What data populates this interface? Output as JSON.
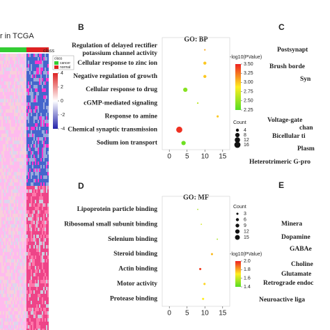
{
  "heatmap": {
    "title": "r in TCGA",
    "legend_title": "class",
    "legend_items": [
      "cancer",
      "normal"
    ],
    "scale_ticks": [
      4,
      2,
      0,
      -2,
      -4
    ]
  },
  "panel_c": {
    "label": "C",
    "items": [
      "Postsynapt",
      "Brush borde",
      "Syn",
      "Voltage-gate",
      "chan",
      "Bicellular ti",
      "Plasm",
      "Heterotrimeric G-pro"
    ]
  },
  "panel_e": {
    "label": "E",
    "items": [
      "Minera",
      "Dopamine",
      "GABAe",
      "Choline",
      "Glutamate",
      "Retrograde endoc",
      "Neuroactive liga"
    ]
  },
  "chart_data": [
    {
      "type": "dot",
      "panel_label": "B",
      "title": "GO: BP",
      "categories": [
        "Regulation of delayed rectifier potassium channel activity",
        "Cellular response to zinc ion",
        "Negative regulation of growth",
        "Cellular response to drug",
        "cGMP-mediated signaling",
        "Response to amine",
        "Chemical synaptic transmission",
        "Sodium ion transport"
      ],
      "values": [
        10,
        10,
        10,
        4.5,
        8,
        13.6,
        2.8,
        4
      ],
      "neg_log10_pvalue": [
        3.1,
        3.0,
        3.0,
        2.4,
        2.6,
        3.0,
        3.5,
        2.3
      ],
      "count": [
        1,
        4,
        4,
        8,
        1,
        2,
        16,
        8
      ],
      "xlim": [
        -2,
        17
      ],
      "xticks": [
        0,
        5,
        10,
        15
      ],
      "color_title": "-log10(PValue)",
      "color_lim": [
        2.2,
        3.55
      ],
      "color_ticks": [
        {
          "value": 3.5,
          "label": "3.50"
        },
        {
          "value": 3.25,
          "label": "3.25"
        },
        {
          "value": 3.0,
          "label": "3.00"
        },
        {
          "value": 2.75,
          "label": "2.75"
        },
        {
          "value": 2.5,
          "label": "2.50"
        },
        {
          "value": 2.25,
          "label": "2.25"
        }
      ],
      "size_title": "Count",
      "size_ticks": [
        4,
        8,
        12,
        16
      ],
      "colors": [
        "#55dd22",
        "#ffee22",
        "#ee2222"
      ]
    },
    {
      "type": "dot",
      "panel_label": "D",
      "title": "GO: MF",
      "categories": [
        "Lipoprotein particle binding",
        "Ribosomal small subunit binding",
        "Selenium binding",
        "Steroid binding",
        "Actin binding",
        "Motor activity",
        "Protease binding"
      ],
      "values": [
        8,
        9,
        13.5,
        12,
        8.7,
        9.9,
        9.5
      ],
      "neg_log10_pvalue": [
        1.5,
        1.6,
        1.5,
        1.8,
        2.05,
        1.75,
        1.7
      ],
      "count": [
        1,
        1,
        1,
        3,
        3,
        3,
        3
      ],
      "xlim": [
        -2,
        17
      ],
      "xticks": [
        0,
        5,
        10,
        15
      ],
      "color_title": "-log10(PValue)",
      "color_lim": [
        1.3,
        2.1
      ],
      "color_ticks": [
        {
          "value": 2.0,
          "label": "2.0"
        },
        1.8,
        1.6,
        1.4
      ],
      "size_title": "Count",
      "size_ticks": [
        3,
        6,
        9,
        12,
        15
      ],
      "colors": [
        "#55dd22",
        "#ffee22",
        "#ee2222"
      ]
    }
  ]
}
